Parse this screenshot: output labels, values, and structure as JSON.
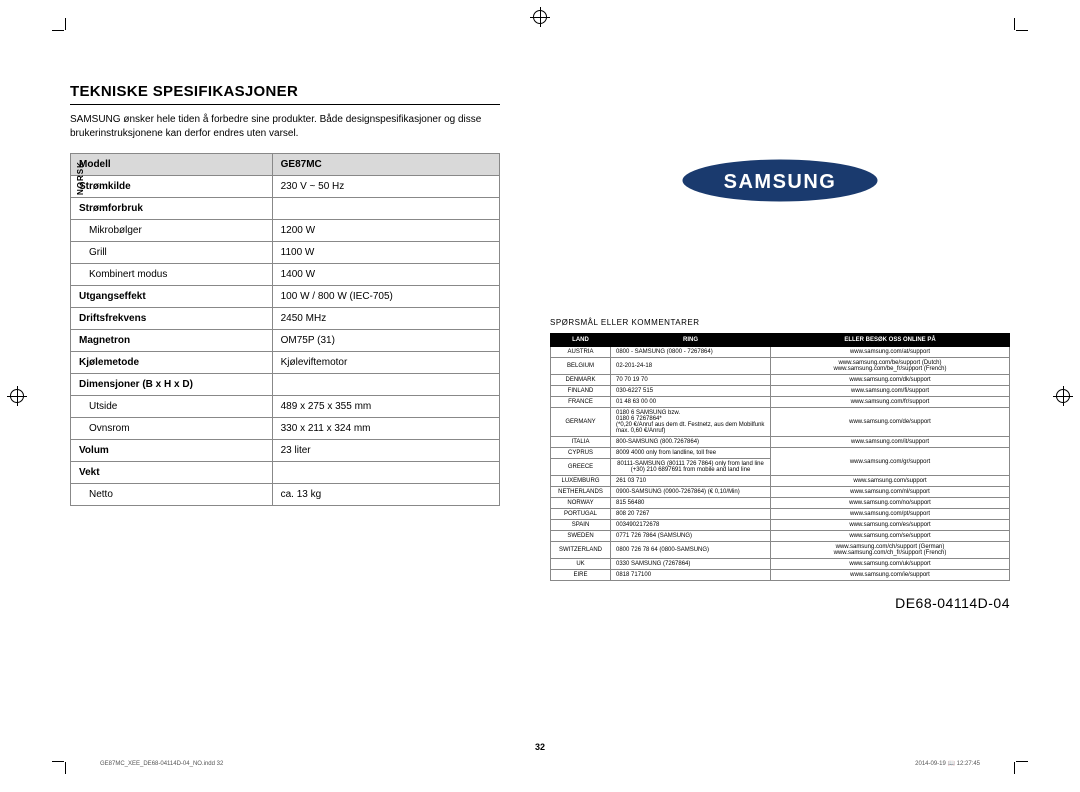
{
  "sideLabel": "NORSK",
  "title": "TEKNISKE SPESIFIKASJONER",
  "intro": "SAMSUNG ønsker hele tiden å forbedre sine produkter. Både designspesifikasjoner og disse brukerinstruksjonene kan derfor endres uten varsel.",
  "specHeader": {
    "model": "Modell",
    "value": "GE87MC"
  },
  "specs": [
    {
      "k": "Strømkilde",
      "v": "230 V ~ 50 Hz",
      "bold": true
    },
    {
      "k": "Strømforbruk",
      "v": "",
      "bold": true
    },
    {
      "k": "Mikrobølger",
      "v": "1200 W",
      "sub": true
    },
    {
      "k": "Grill",
      "v": "1100 W",
      "sub": true
    },
    {
      "k": "Kombinert modus",
      "v": "1400 W",
      "sub": true
    },
    {
      "k": "Utgangseffekt",
      "v": "100 W / 800 W (IEC-705)",
      "bold": true
    },
    {
      "k": "Driftsfrekvens",
      "v": "2450 MHz",
      "bold": true
    },
    {
      "k": "Magnetron",
      "v": "OM75P (31)",
      "bold": true
    },
    {
      "k": "Kjølemetode",
      "v": "Kjøleviftemotor",
      "bold": true
    },
    {
      "k": "Dimensjoner (B x H x D)",
      "v": "",
      "bold": true
    },
    {
      "k": "Utside",
      "v": "489 x 275 x 355 mm",
      "sub": true
    },
    {
      "k": "Ovnsrom",
      "v": "330 x 211 x 324 mm",
      "sub": true
    },
    {
      "k": "Volum",
      "v": "23 liter",
      "bold": true
    },
    {
      "k": "Vekt",
      "v": "",
      "bold": true
    },
    {
      "k": "Netto",
      "v": "ca. 13 kg",
      "sub": true
    }
  ],
  "supportTitle": "SPØRSMÅL ELLER KOMMENTARER",
  "contactHeader": {
    "c1": "LAND",
    "c2": "RING",
    "c3": "ELLER BESØK OSS ONLINE PÅ"
  },
  "contacts": [
    {
      "land": "AUSTRIA",
      "ring": "0800 - SAMSUNG (0800 - 7267864)",
      "url": "www.samsung.com/at/support"
    },
    {
      "land": "BELGIUM",
      "ring": "02-201-24-18",
      "url": "www.samsung.com/be/support (Dutch)\nwww.samsung.com/be_fr/support (French)"
    },
    {
      "land": "DENMARK",
      "ring": "70 70 19 70",
      "url": "www.samsung.com/dk/support"
    },
    {
      "land": "FINLAND",
      "ring": "030-6227 515",
      "url": "www.samsung.com/fi/support"
    },
    {
      "land": "FRANCE",
      "ring": "01 48 63 00 00",
      "url": "www.samsung.com/fr/support"
    },
    {
      "land": "GERMANY",
      "ring": "0180 6 SAMSUNG bzw.\n0180 6 7267864*\n(*0,20 €/Anruf aus dem dt. Festnetz, aus dem Mobilfunk max. 0,60 €/Anruf)",
      "url": "www.samsung.com/de/support"
    },
    {
      "land": "ITALIA",
      "ring": "800-SAMSUNG (800.7267864)",
      "url": "www.samsung.com/it/support"
    },
    {
      "land": "CYPRUS",
      "ring": "8009 4000 only from landline, toll free",
      "url": "www.samsung.com/gr/support",
      "rowspan": 2
    },
    {
      "land": "GREECE",
      "ring": "80111-SAMSUNG (80111 726 7864) only from land line\n(+30) 210 6897691 from mobile and land line",
      "skip": true
    },
    {
      "land": "LUXEMBURG",
      "ring": "261 03 710",
      "url": "www.samsung.com/support"
    },
    {
      "land": "NETHERLANDS",
      "ring": "0900-SAMSUNG (0900-7267864) (€ 0,10/Min)",
      "url": "www.samsung.com/nl/support"
    },
    {
      "land": "NORWAY",
      "ring": "815 56480",
      "url": "www.samsung.com/no/support"
    },
    {
      "land": "PORTUGAL",
      "ring": "808 20 7267",
      "url": "www.samsung.com/pt/support"
    },
    {
      "land": "SPAIN",
      "ring": "0034902172678",
      "url": "www.samsung.com/es/support"
    },
    {
      "land": "SWEDEN",
      "ring": "0771 726 7864 (SAMSUNG)",
      "url": "www.samsung.com/se/support"
    },
    {
      "land": "SWITZERLAND",
      "ring": "0800 726 78 64 (0800-SAMSUNG)",
      "url": "www.samsung.com/ch/support (German)\nwww.samsung.com/ch_fr/support (French)"
    },
    {
      "land": "UK",
      "ring": "0330 SAMSUNG (7267864)",
      "url": "www.samsung.com/uk/support"
    },
    {
      "land": "EIRE",
      "ring": "0818 717100",
      "url": "www.samsung.com/ie/support"
    }
  ],
  "docnum": "DE68-04114D-04",
  "pageNum": "32",
  "footerLeft": "GE87MC_XEE_DE68-04114D-04_NO.indd   32",
  "footerRight": "2014-09-19   📖 12:27:45"
}
